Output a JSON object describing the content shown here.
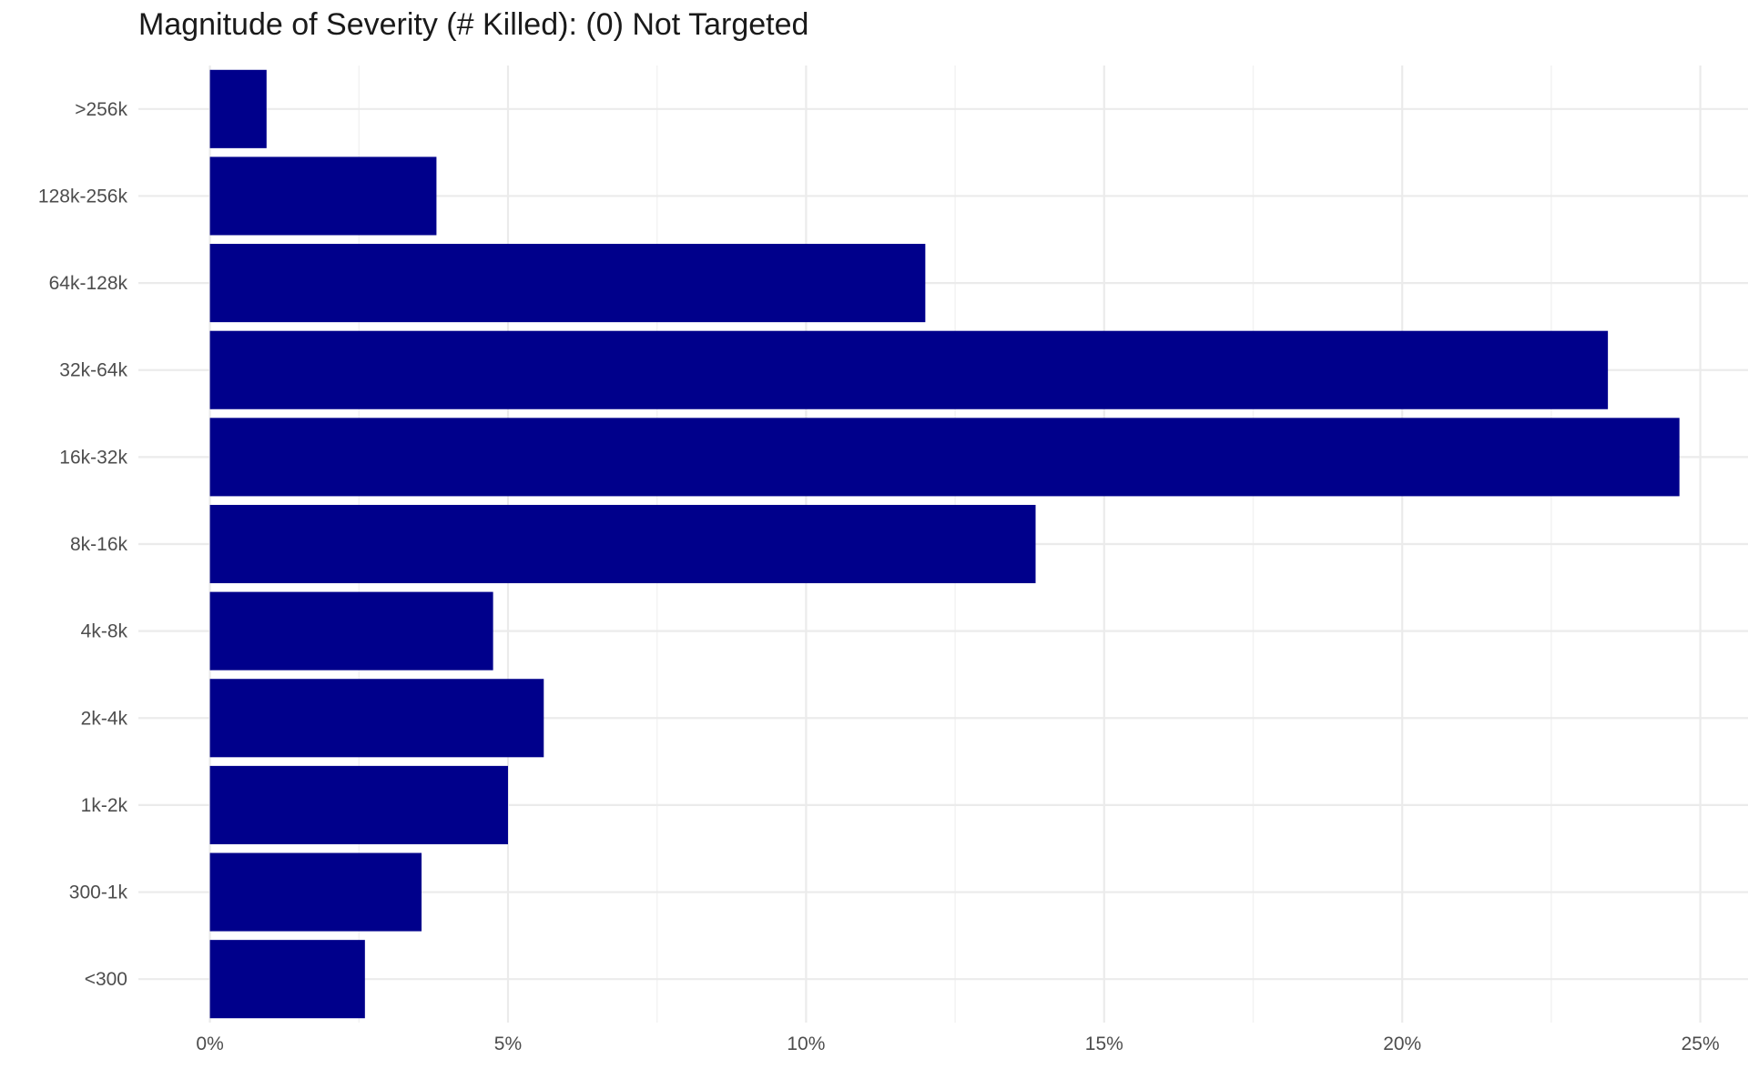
{
  "chart_data": {
    "type": "bar",
    "orientation": "horizontal",
    "title": "Magnitude of Severity (# Killed): (0) Not Targeted",
    "xlabel": "",
    "ylabel": "",
    "categories": [
      "<300",
      "300-1k",
      "1k-2k",
      "2k-4k",
      "4k-8k",
      "8k-16k",
      "16k-32k",
      "32k-64k",
      "64k-128k",
      "128k-256k",
      ">256k"
    ],
    "values": [
      2.6,
      3.55,
      5.0,
      5.6,
      4.75,
      13.85,
      24.65,
      23.45,
      12.0,
      3.8,
      0.95
    ],
    "value_unit": "%",
    "xlim": [
      -1.2,
      25.8
    ],
    "x_ticks": [
      0,
      5,
      10,
      15,
      20,
      25
    ],
    "x_tick_labels": [
      "0%",
      "5%",
      "10%",
      "15%",
      "20%",
      "25%"
    ],
    "grid": true,
    "legend": "none",
    "colors": {
      "bar": "#00008B",
      "grid_major": "#ebebeb",
      "grid_minor": "#f2f2f2",
      "text": "#4d4d4d",
      "title": "#1a1a1a",
      "background": "#ffffff"
    }
  }
}
